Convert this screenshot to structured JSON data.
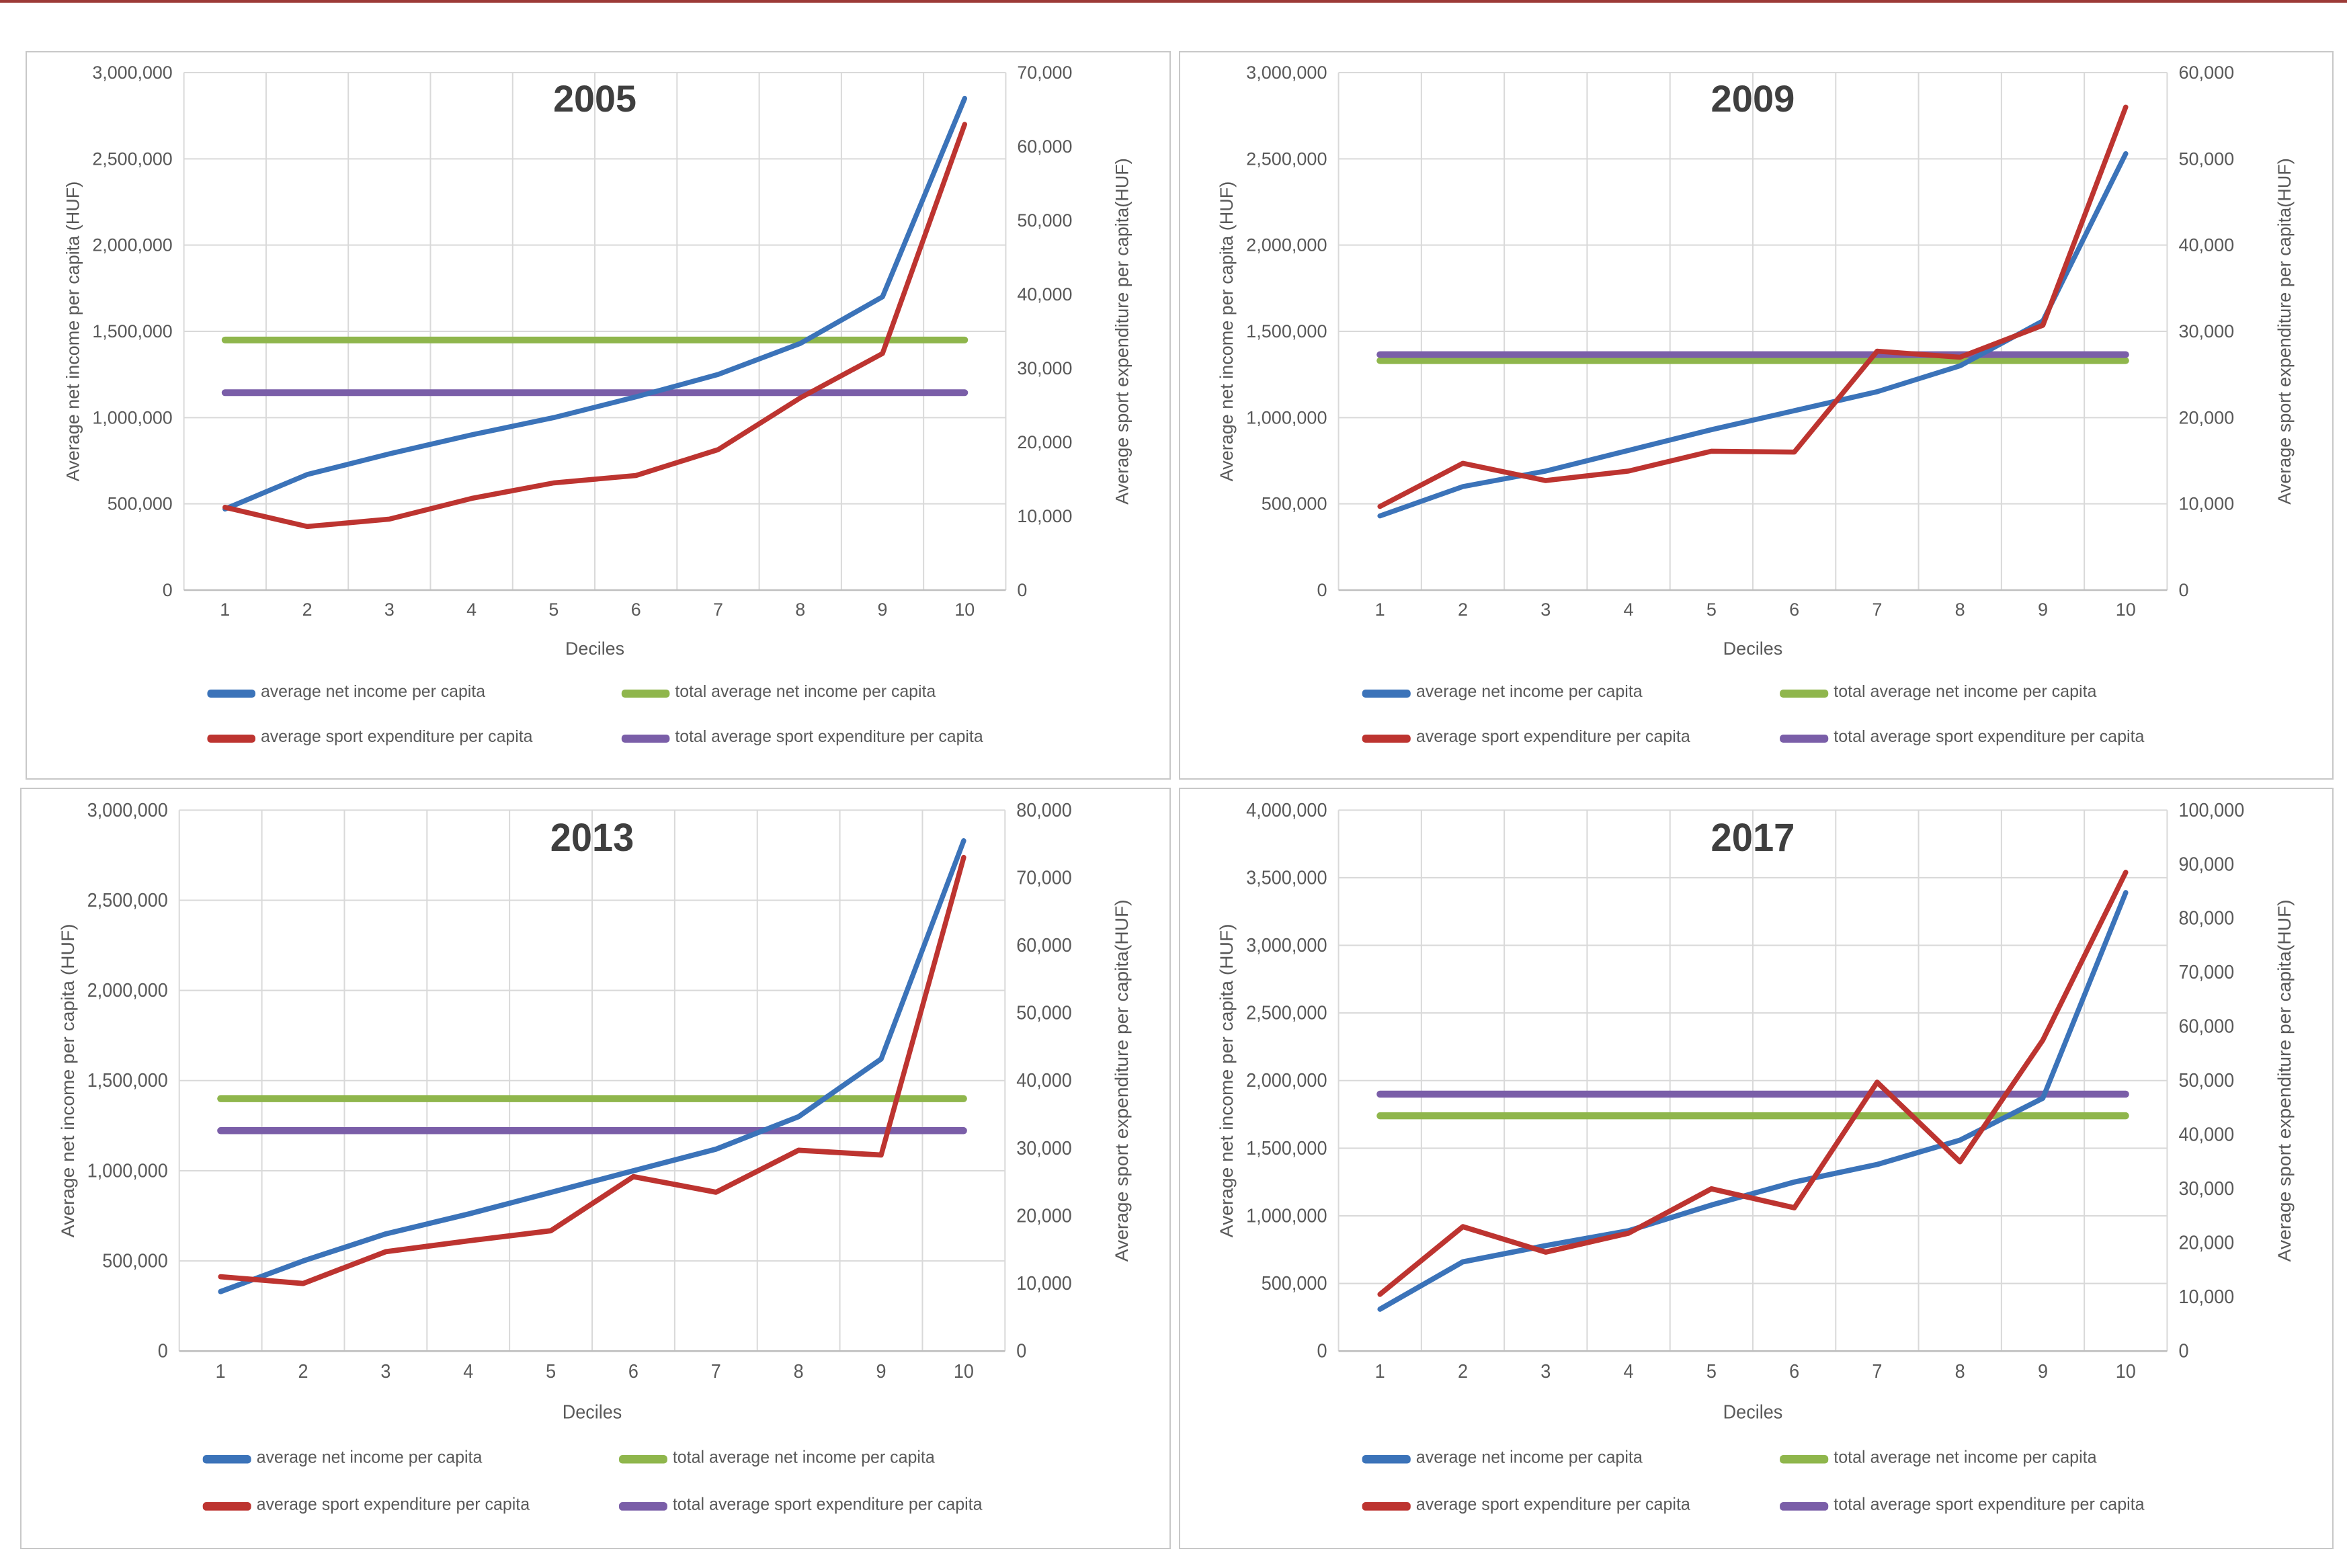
{
  "figure": {
    "x_axis_label": "Deciles",
    "left_axis_label": "Average net income per capita (HUF)",
    "right_axis_label": "Average sport expenditure per capita(HUF)",
    "x_categories": [
      "1",
      "2",
      "3",
      "4",
      "5",
      "6",
      "7",
      "8",
      "9",
      "10"
    ],
    "legend": [
      {
        "label": "average net income per capita",
        "color_key": "income"
      },
      {
        "label": "total average net income per capita",
        "color_key": "total_income"
      },
      {
        "label": "average sport expenditure per capita",
        "color_key": "sport"
      },
      {
        "label": "total average sport expenditure per capita",
        "color_key": "total_sport"
      }
    ],
    "colors": {
      "income": "#3B73B9",
      "sport": "#BD3430",
      "total_income": "#8FB64C",
      "total_sport": "#7A5EA8",
      "grid": "#D9D9D9",
      "axis_line": "#BFBFBF",
      "tick_text": "#595959",
      "title_text": "#3F3F3F",
      "panel_border": "#C8C8C8",
      "top_stripe": "#9C3A37"
    }
  },
  "chart_data": [
    {
      "type": "line",
      "title": "2005",
      "xlabel": "Deciles",
      "ylabel_left": "Average net income per capita (HUF)",
      "ylabel_right": "Average sport expenditure per capita(HUF)",
      "categories": [
        1,
        2,
        3,
        4,
        5,
        6,
        7,
        8,
        9,
        10
      ],
      "left_axis": {
        "min": 0,
        "max": 3000000,
        "step": 500000
      },
      "right_axis": {
        "min": 0,
        "max": 70000,
        "step": 10000
      },
      "grid": true,
      "legend_position": "bottom",
      "series": [
        {
          "name": "total average net income per capita",
          "axis": "left",
          "color_key": "total_income",
          "constant": 1450000
        },
        {
          "name": "total average sport expenditure per capita",
          "axis": "right",
          "color_key": "total_sport",
          "constant": 26700
        },
        {
          "name": "average net income per capita",
          "axis": "left",
          "color_key": "income",
          "values": [
            470000,
            670000,
            790000,
            900000,
            1000000,
            1120000,
            1250000,
            1430000,
            1700000,
            2850000
          ]
        },
        {
          "name": "average sport expenditure per capita",
          "axis": "right",
          "color_key": "sport",
          "values": [
            11200,
            8600,
            9600,
            12400,
            14500,
            15500,
            19000,
            26000,
            32000,
            63000
          ]
        }
      ]
    },
    {
      "type": "line",
      "title": "2009",
      "xlabel": "Deciles",
      "ylabel_left": "Average net income per capita (HUF)",
      "ylabel_right": "Average sport expenditure per capita(HUF)",
      "categories": [
        1,
        2,
        3,
        4,
        5,
        6,
        7,
        8,
        9,
        10
      ],
      "left_axis": {
        "min": 0,
        "max": 3000000,
        "step": 500000
      },
      "right_axis": {
        "min": 0,
        "max": 60000,
        "step": 10000
      },
      "grid": true,
      "legend_position": "bottom",
      "series": [
        {
          "name": "total average net income per capita",
          "axis": "left",
          "color_key": "total_income",
          "constant": 1330000
        },
        {
          "name": "total average sport expenditure per capita",
          "axis": "right",
          "color_key": "total_sport",
          "constant": 27300
        },
        {
          "name": "average net income per capita",
          "axis": "left",
          "color_key": "income",
          "values": [
            430000,
            600000,
            690000,
            810000,
            930000,
            1040000,
            1150000,
            1300000,
            1560000,
            2530000
          ]
        },
        {
          "name": "average sport expenditure per capita",
          "axis": "right",
          "color_key": "sport",
          "values": [
            9700,
            14700,
            12700,
            13800,
            16100,
            16000,
            27700,
            27000,
            30700,
            56000
          ]
        }
      ]
    },
    {
      "type": "line",
      "title": "2013",
      "xlabel": "Deciles",
      "ylabel_left": "Average net income per capita (HUF)",
      "ylabel_right": "Average sport expenditure per capita(HUF)",
      "categories": [
        1,
        2,
        3,
        4,
        5,
        6,
        7,
        8,
        9,
        10
      ],
      "left_axis": {
        "min": 0,
        "max": 3000000,
        "step": 500000
      },
      "right_axis": {
        "min": 0,
        "max": 80000,
        "step": 10000
      },
      "grid": true,
      "legend_position": "bottom",
      "series": [
        {
          "name": "total average net income per capita",
          "axis": "left",
          "color_key": "total_income",
          "constant": 1400000
        },
        {
          "name": "total average sport expenditure per capita",
          "axis": "right",
          "color_key": "total_sport",
          "constant": 32600
        },
        {
          "name": "average net income per capita",
          "axis": "left",
          "color_key": "income",
          "values": [
            330000,
            500000,
            650000,
            760000,
            880000,
            1000000,
            1120000,
            1300000,
            1620000,
            2830000
          ]
        },
        {
          "name": "average sport expenditure per capita",
          "axis": "right",
          "color_key": "sport",
          "values": [
            11000,
            10000,
            14700,
            16300,
            17800,
            25800,
            23500,
            29700,
            29000,
            73000
          ]
        }
      ]
    },
    {
      "type": "line",
      "title": "2017",
      "xlabel": "Deciles",
      "ylabel_left": "Average net income per capita (HUF)",
      "ylabel_right": "Average sport expenditure per capita(HUF)",
      "categories": [
        1,
        2,
        3,
        4,
        5,
        6,
        7,
        8,
        9,
        10
      ],
      "left_axis": {
        "min": 0,
        "max": 4000000,
        "step": 500000
      },
      "right_axis": {
        "min": 0,
        "max": 100000,
        "step": 10000
      },
      "grid": true,
      "legend_position": "bottom",
      "series": [
        {
          "name": "total average net income per capita",
          "axis": "left",
          "color_key": "total_income",
          "constant": 1740000
        },
        {
          "name": "total average sport expenditure per capita",
          "axis": "right",
          "color_key": "total_sport",
          "constant": 47500
        },
        {
          "name": "average net income per capita",
          "axis": "left",
          "color_key": "income",
          "values": [
            310000,
            660000,
            780000,
            890000,
            1080000,
            1250000,
            1380000,
            1560000,
            1870000,
            3390000
          ]
        },
        {
          "name": "average sport expenditure per capita",
          "axis": "right",
          "color_key": "sport",
          "values": [
            10500,
            23000,
            18300,
            21800,
            30000,
            26500,
            49700,
            35000,
            57500,
            88500
          ]
        }
      ]
    }
  ]
}
